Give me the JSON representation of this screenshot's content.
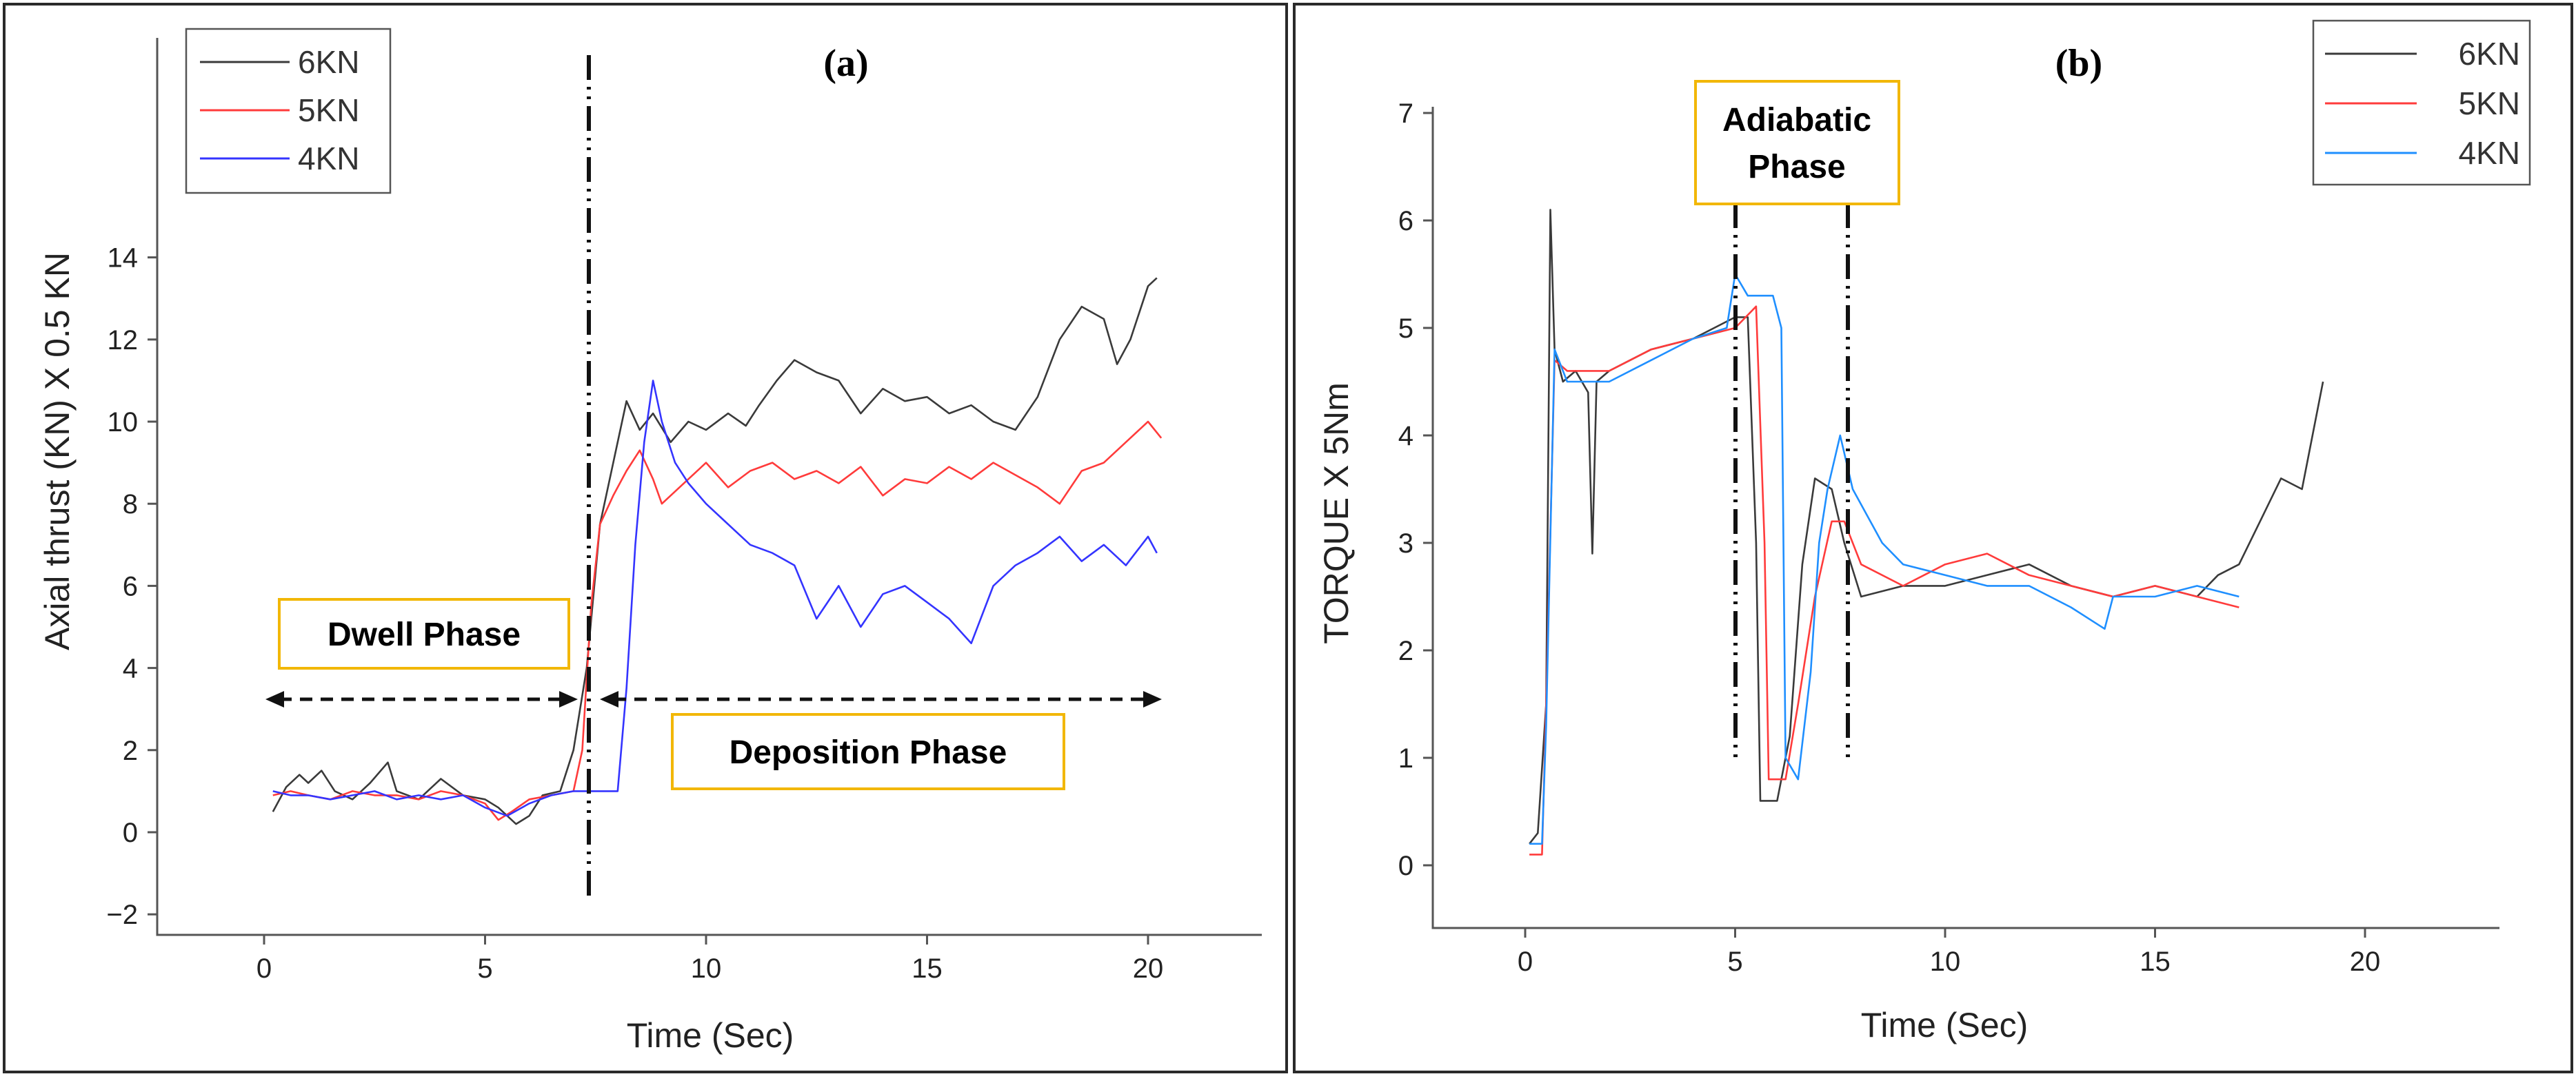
{
  "colors": {
    "6KN": "#3a3a3a",
    "5KN": "#ff3b3b",
    "4KN_a": "#3434ff",
    "4KN_b": "#1f8fff"
  },
  "panels": [
    {
      "label": "(a)",
      "xlabel": "Time (Sec)",
      "ylabel": "Axial thrust (KN) X 0.5 KN",
      "x_ticks": [
        "0",
        "5",
        "10",
        "15",
        "20"
      ],
      "y_ticks": [
        "−2",
        "0",
        "2",
        "4",
        "6",
        "8",
        "10",
        "12",
        "14"
      ],
      "legend": [
        "6KN",
        "5KN",
        "4KN"
      ],
      "annotations": {
        "dwell": "Dwell Phase",
        "deposition": "Deposition Phase"
      }
    },
    {
      "label": "(b)",
      "xlabel": "Time (Sec)",
      "ylabel": "TORQUE X 5Nm",
      "x_ticks": [
        "0",
        "5",
        "10",
        "15",
        "20"
      ],
      "y_ticks": [
        "0",
        "1",
        "2",
        "3",
        "4",
        "5",
        "6",
        "7"
      ],
      "legend": [
        "6KN",
        "5KN",
        "4KN"
      ],
      "annotations": {
        "adiabatic_line1": "Adiabatic",
        "adiabatic_line2": "Phase"
      }
    }
  ],
  "chart_data": [
    {
      "type": "line",
      "title": "(a)",
      "xlabel": "Time (Sec)",
      "ylabel": "Axial thrust (KN) X 0.5 KN",
      "xlim": [
        -2.5,
        22.5
      ],
      "ylim": [
        -2,
        15
      ],
      "legend_position": "top-left",
      "vertical_markers": [
        7.3
      ],
      "series": [
        {
          "name": "6KN",
          "color": "#3a3a3a",
          "points": [
            [
              0.2,
              0.5
            ],
            [
              0.5,
              1.1
            ],
            [
              0.8,
              1.4
            ],
            [
              1.0,
              1.2
            ],
            [
              1.3,
              1.5
            ],
            [
              1.6,
              1.0
            ],
            [
              2.0,
              0.8
            ],
            [
              2.4,
              1.2
            ],
            [
              2.8,
              1.7
            ],
            [
              3.0,
              1.0
            ],
            [
              3.5,
              0.8
            ],
            [
              4.0,
              1.3
            ],
            [
              4.5,
              0.9
            ],
            [
              5.0,
              0.8
            ],
            [
              5.3,
              0.6
            ],
            [
              5.7,
              0.2
            ],
            [
              6.0,
              0.4
            ],
            [
              6.3,
              0.9
            ],
            [
              6.7,
              1.0
            ],
            [
              7.0,
              2.0
            ],
            [
              7.3,
              4.0
            ],
            [
              7.6,
              7.5
            ],
            [
              7.9,
              9.0
            ],
            [
              8.2,
              10.5
            ],
            [
              8.5,
              9.8
            ],
            [
              8.8,
              10.2
            ],
            [
              9.2,
              9.5
            ],
            [
              9.6,
              10.0
            ],
            [
              10.0,
              9.8
            ],
            [
              10.5,
              10.2
            ],
            [
              10.9,
              9.9
            ],
            [
              11.2,
              10.4
            ],
            [
              11.6,
              11.0
            ],
            [
              12.0,
              11.5
            ],
            [
              12.5,
              11.2
            ],
            [
              13.0,
              11.0
            ],
            [
              13.5,
              10.2
            ],
            [
              14.0,
              10.8
            ],
            [
              14.5,
              10.5
            ],
            [
              15.0,
              10.6
            ],
            [
              15.5,
              10.2
            ],
            [
              16.0,
              10.4
            ],
            [
              16.5,
              10.0
            ],
            [
              17.0,
              9.8
            ],
            [
              17.5,
              10.6
            ],
            [
              18.0,
              12.0
            ],
            [
              18.5,
              12.8
            ],
            [
              19.0,
              12.5
            ],
            [
              19.3,
              11.4
            ],
            [
              19.6,
              12.0
            ],
            [
              20.0,
              13.3
            ],
            [
              20.2,
              13.5
            ]
          ]
        },
        {
          "name": "5KN",
          "color": "#ff3b3b",
          "points": [
            [
              0.2,
              0.9
            ],
            [
              0.6,
              1.0
            ],
            [
              1.0,
              0.9
            ],
            [
              1.5,
              0.8
            ],
            [
              2.0,
              1.0
            ],
            [
              2.5,
              0.9
            ],
            [
              3.0,
              0.9
            ],
            [
              3.5,
              0.8
            ],
            [
              4.0,
              1.0
            ],
            [
              4.5,
              0.9
            ],
            [
              5.0,
              0.7
            ],
            [
              5.3,
              0.3
            ],
            [
              5.6,
              0.5
            ],
            [
              6.0,
              0.8
            ],
            [
              6.5,
              0.9
            ],
            [
              7.0,
              1.0
            ],
            [
              7.2,
              2.0
            ],
            [
              7.4,
              5.5
            ],
            [
              7.6,
              7.5
            ],
            [
              7.9,
              8.2
            ],
            [
              8.2,
              8.8
            ],
            [
              8.5,
              9.3
            ],
            [
              8.8,
              8.6
            ],
            [
              9.0,
              8.0
            ],
            [
              9.5,
              8.5
            ],
            [
              10.0,
              9.0
            ],
            [
              10.5,
              8.4
            ],
            [
              11.0,
              8.8
            ],
            [
              11.5,
              9.0
            ],
            [
              12.0,
              8.6
            ],
            [
              12.5,
              8.8
            ],
            [
              13.0,
              8.5
            ],
            [
              13.5,
              8.9
            ],
            [
              14.0,
              8.2
            ],
            [
              14.5,
              8.6
            ],
            [
              15.0,
              8.5
            ],
            [
              15.5,
              8.9
            ],
            [
              16.0,
              8.6
            ],
            [
              16.5,
              9.0
            ],
            [
              17.0,
              8.7
            ],
            [
              17.5,
              8.4
            ],
            [
              18.0,
              8.0
            ],
            [
              18.5,
              8.8
            ],
            [
              19.0,
              9.0
            ],
            [
              19.5,
              9.5
            ],
            [
              20.0,
              10.0
            ],
            [
              20.3,
              9.6
            ]
          ]
        },
        {
          "name": "4KN",
          "color": "#3434ff",
          "points": [
            [
              0.2,
              1.0
            ],
            [
              0.6,
              0.9
            ],
            [
              1.0,
              0.9
            ],
            [
              1.5,
              0.8
            ],
            [
              2.0,
              0.9
            ],
            [
              2.5,
              1.0
            ],
            [
              3.0,
              0.8
            ],
            [
              3.5,
              0.9
            ],
            [
              4.0,
              0.8
            ],
            [
              4.5,
              0.9
            ],
            [
              5.0,
              0.6
            ],
            [
              5.5,
              0.4
            ],
            [
              6.0,
              0.7
            ],
            [
              6.5,
              0.9
            ],
            [
              7.0,
              1.0
            ],
            [
              7.5,
              1.0
            ],
            [
              8.0,
              1.0
            ],
            [
              8.2,
              3.5
            ],
            [
              8.4,
              7.0
            ],
            [
              8.6,
              9.5
            ],
            [
              8.8,
              11.0
            ],
            [
              9.0,
              10.0
            ],
            [
              9.3,
              9.0
            ],
            [
              9.6,
              8.5
            ],
            [
              10.0,
              8.0
            ],
            [
              10.5,
              7.5
            ],
            [
              11.0,
              7.0
            ],
            [
              11.5,
              6.8
            ],
            [
              12.0,
              6.5
            ],
            [
              12.5,
              5.2
            ],
            [
              13.0,
              6.0
            ],
            [
              13.5,
              5.0
            ],
            [
              14.0,
              5.8
            ],
            [
              14.5,
              6.0
            ],
            [
              15.0,
              5.6
            ],
            [
              15.5,
              5.2
            ],
            [
              16.0,
              4.6
            ],
            [
              16.5,
              6.0
            ],
            [
              17.0,
              6.5
            ],
            [
              17.5,
              6.8
            ],
            [
              18.0,
              7.2
            ],
            [
              18.5,
              6.6
            ],
            [
              19.0,
              7.0
            ],
            [
              19.5,
              6.5
            ],
            [
              20.0,
              7.2
            ],
            [
              20.2,
              6.8
            ]
          ]
        }
      ]
    },
    {
      "type": "line",
      "title": "(b)",
      "xlabel": "Time (Sec)",
      "ylabel": "TORQUE X 5Nm",
      "xlim": [
        -2.5,
        22.5
      ],
      "ylim": [
        -0.2,
        7
      ],
      "legend_position": "top-right",
      "vertical_markers": [
        4.8,
        7.4
      ],
      "series": [
        {
          "name": "6KN",
          "color": "#3a3a3a",
          "points": [
            [
              0.1,
              0.2
            ],
            [
              0.3,
              0.3
            ],
            [
              0.5,
              1.5
            ],
            [
              0.6,
              6.1
            ],
            [
              0.7,
              4.8
            ],
            [
              0.9,
              4.5
            ],
            [
              1.2,
              4.6
            ],
            [
              1.5,
              4.4
            ],
            [
              1.6,
              2.9
            ],
            [
              1.7,
              4.5
            ],
            [
              2.0,
              4.6
            ],
            [
              3.0,
              4.8
            ],
            [
              4.0,
              4.9
            ],
            [
              4.5,
              5.0
            ],
            [
              5.0,
              5.1
            ],
            [
              5.3,
              5.1
            ],
            [
              5.5,
              3.0
            ],
            [
              5.6,
              0.6
            ],
            [
              6.0,
              0.6
            ],
            [
              6.3,
              1.2
            ],
            [
              6.6,
              2.8
            ],
            [
              6.9,
              3.6
            ],
            [
              7.3,
              3.5
            ],
            [
              7.6,
              3.0
            ],
            [
              8.0,
              2.5
            ],
            [
              9.0,
              2.6
            ],
            [
              10.0,
              2.6
            ],
            [
              11.0,
              2.7
            ],
            [
              12.0,
              2.8
            ],
            [
              13.0,
              2.6
            ],
            [
              14.0,
              2.5
            ],
            [
              15.0,
              2.6
            ],
            [
              16.0,
              2.5
            ],
            [
              16.5,
              2.7
            ],
            [
              17.0,
              2.8
            ],
            [
              17.5,
              3.2
            ],
            [
              18.0,
              3.6
            ],
            [
              18.5,
              3.5
            ],
            [
              19.0,
              4.5
            ]
          ]
        },
        {
          "name": "5KN",
          "color": "#ff3b3b",
          "points": [
            [
              0.1,
              0.1
            ],
            [
              0.4,
              0.1
            ],
            [
              0.5,
              1.5
            ],
            [
              0.7,
              4.7
            ],
            [
              1.0,
              4.6
            ],
            [
              2.0,
              4.6
            ],
            [
              3.0,
              4.8
            ],
            [
              4.0,
              4.9
            ],
            [
              5.0,
              5.0
            ],
            [
              5.5,
              5.2
            ],
            [
              5.7,
              3.0
            ],
            [
              5.8,
              0.8
            ],
            [
              6.2,
              0.8
            ],
            [
              6.5,
              1.5
            ],
            [
              6.9,
              2.5
            ],
            [
              7.3,
              3.2
            ],
            [
              7.6,
              3.2
            ],
            [
              8.0,
              2.8
            ],
            [
              9.0,
              2.6
            ],
            [
              10.0,
              2.8
            ],
            [
              11.0,
              2.9
            ],
            [
              12.0,
              2.7
            ],
            [
              13.0,
              2.6
            ],
            [
              14.0,
              2.5
            ],
            [
              15.0,
              2.6
            ],
            [
              16.0,
              2.5
            ],
            [
              17.0,
              2.4
            ]
          ]
        },
        {
          "name": "4KN",
          "color": "#1f8fff",
          "points": [
            [
              0.1,
              0.2
            ],
            [
              0.4,
              0.2
            ],
            [
              0.5,
              1.3
            ],
            [
              0.7,
              4.8
            ],
            [
              1.0,
              4.5
            ],
            [
              2.0,
              4.5
            ],
            [
              3.0,
              4.7
            ],
            [
              4.0,
              4.9
            ],
            [
              4.8,
              5.0
            ],
            [
              5.0,
              5.5
            ],
            [
              5.3,
              5.3
            ],
            [
              5.9,
              5.3
            ],
            [
              6.1,
              5.0
            ],
            [
              6.2,
              1.0
            ],
            [
              6.5,
              0.8
            ],
            [
              6.8,
              1.8
            ],
            [
              7.0,
              3.0
            ],
            [
              7.2,
              3.5
            ],
            [
              7.5,
              4.0
            ],
            [
              7.8,
              3.5
            ],
            [
              8.5,
              3.0
            ],
            [
              9.0,
              2.8
            ],
            [
              10.0,
              2.7
            ],
            [
              11.0,
              2.6
            ],
            [
              12.0,
              2.6
            ],
            [
              13.0,
              2.4
            ],
            [
              13.8,
              2.2
            ],
            [
              14.0,
              2.5
            ],
            [
              15.0,
              2.5
            ],
            [
              16.0,
              2.6
            ],
            [
              17.0,
              2.5
            ]
          ]
        }
      ]
    }
  ]
}
